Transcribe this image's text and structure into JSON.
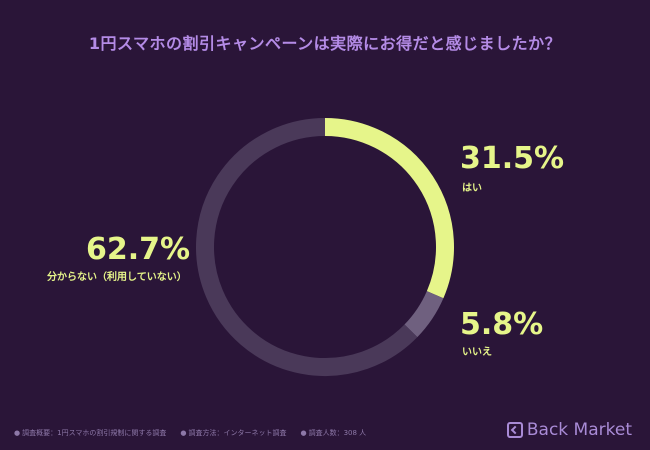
{
  "chart_data": {
    "type": "pie",
    "title": "1円スマホの割引キャンペーンは実際にお得だと感じましたか？",
    "categories": [
      "はい",
      "いいえ",
      "分からない（利用していない）"
    ],
    "values": [
      31.5,
      5.8,
      62.7
    ],
    "value_labels": [
      "31.5%",
      "5.8%",
      "62.7%"
    ],
    "colors": [
      "#e6f58a",
      "#6f607f",
      "#4a3959"
    ]
  },
  "footer": {
    "survey_outline": "調査概要：1円スマホの割引規制に関する調査",
    "survey_method": "調査方法：インターネット調査",
    "survey_count": "調査人数：308 人"
  },
  "brand": {
    "name": "Back Market",
    "icon": "back-market-logo-icon"
  }
}
